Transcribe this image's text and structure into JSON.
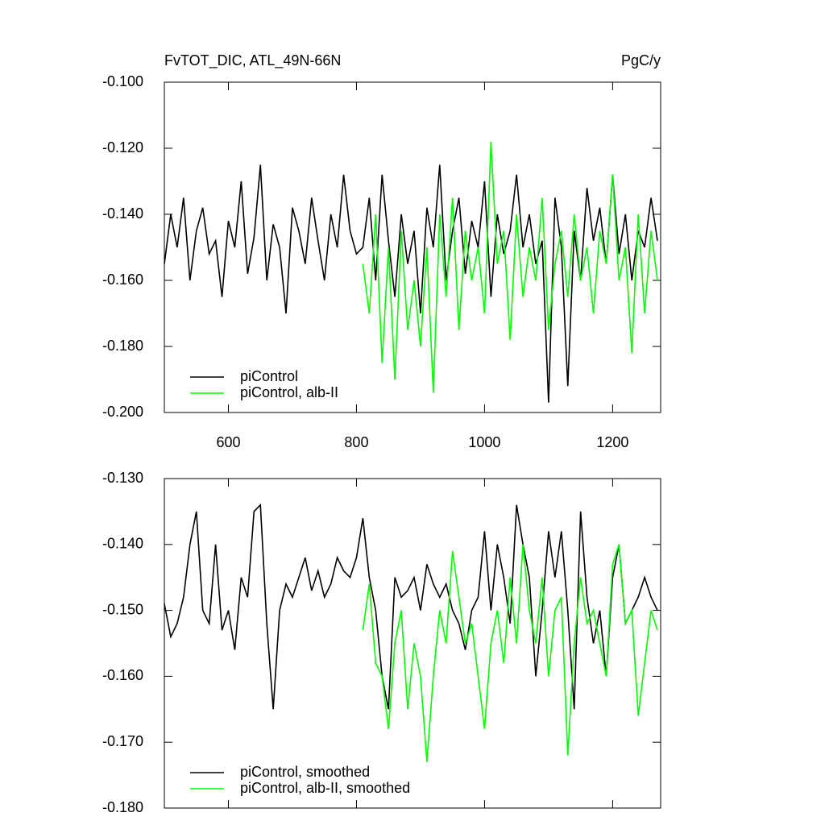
{
  "chart_data": [
    {
      "type": "line",
      "title": "FvTOT_DIC, ATL_49N-66N",
      "units": "PgC/y",
      "x": [
        500,
        510,
        520,
        530,
        540,
        550,
        560,
        570,
        580,
        590,
        600,
        610,
        620,
        630,
        640,
        650,
        660,
        670,
        680,
        690,
        700,
        710,
        720,
        730,
        740,
        750,
        760,
        770,
        780,
        790,
        800,
        810,
        820,
        830,
        840,
        850,
        860,
        870,
        880,
        890,
        900,
        910,
        920,
        930,
        940,
        950,
        960,
        970,
        980,
        990,
        1000,
        1010,
        1020,
        1030,
        1040,
        1050,
        1060,
        1070,
        1080,
        1090,
        1100,
        1110,
        1120,
        1130,
        1140,
        1150,
        1160,
        1170,
        1180,
        1190,
        1200,
        1210,
        1220,
        1230,
        1240,
        1250,
        1260,
        1270
      ],
      "xlim": [
        500,
        1275
      ],
      "xticks": [
        600,
        800,
        1000,
        1200
      ],
      "ylim": [
        -0.2,
        -0.1
      ],
      "yticks": [
        {
          "value": -0.2,
          "label": "-0.200"
        },
        {
          "value": -0.18,
          "label": "-0.180"
        },
        {
          "value": -0.16,
          "label": "-0.160"
        },
        {
          "value": -0.14,
          "label": "-0.140"
        },
        {
          "value": -0.12,
          "label": "-0.120"
        },
        {
          "value": -0.1,
          "label": "-0.100"
        }
      ],
      "legend": "lower left",
      "series": [
        {
          "name": "piControl",
          "color": "#000000",
          "values": [
            -0.155,
            -0.14,
            -0.15,
            -0.135,
            -0.16,
            -0.145,
            -0.138,
            -0.152,
            -0.148,
            -0.165,
            -0.142,
            -0.15,
            -0.13,
            -0.158,
            -0.147,
            -0.125,
            -0.16,
            -0.143,
            -0.15,
            -0.17,
            -0.138,
            -0.145,
            -0.155,
            -0.135,
            -0.148,
            -0.16,
            -0.14,
            -0.15,
            -0.128,
            -0.145,
            -0.152,
            -0.15,
            -0.135,
            -0.16,
            -0.128,
            -0.148,
            -0.165,
            -0.14,
            -0.155,
            -0.145,
            -0.17,
            -0.138,
            -0.15,
            -0.125,
            -0.16,
            -0.145,
            -0.135,
            -0.158,
            -0.142,
            -0.15,
            -0.13,
            -0.165,
            -0.14,
            -0.152,
            -0.145,
            -0.128,
            -0.15,
            -0.14,
            -0.155,
            -0.148,
            -0.197,
            -0.135,
            -0.15,
            -0.192,
            -0.145,
            -0.16,
            -0.132,
            -0.148,
            -0.138,
            -0.155,
            -0.128,
            -0.152,
            -0.14,
            -0.16,
            -0.145,
            -0.15,
            -0.135,
            -0.148
          ]
        },
        {
          "name": "piControl, alb-II",
          "color": "#00ff00",
          "values": [
            null,
            null,
            null,
            null,
            null,
            null,
            null,
            null,
            null,
            null,
            null,
            null,
            null,
            null,
            null,
            null,
            null,
            null,
            null,
            null,
            null,
            null,
            null,
            null,
            null,
            null,
            null,
            null,
            null,
            null,
            null,
            -0.155,
            -0.17,
            -0.14,
            -0.185,
            -0.15,
            -0.19,
            -0.145,
            -0.175,
            -0.16,
            -0.18,
            -0.15,
            -0.194,
            -0.14,
            -0.165,
            -0.135,
            -0.175,
            -0.145,
            -0.16,
            -0.15,
            -0.17,
            -0.118,
            -0.155,
            -0.145,
            -0.178,
            -0.14,
            -0.165,
            -0.15,
            -0.16,
            -0.135,
            -0.175,
            -0.155,
            -0.145,
            -0.165,
            -0.14,
            -0.16,
            -0.15,
            -0.17,
            -0.145,
            -0.155,
            -0.128,
            -0.16,
            -0.15,
            -0.182,
            -0.14,
            -0.17,
            -0.145,
            -0.16
          ]
        }
      ]
    },
    {
      "type": "line",
      "x": [
        500,
        510,
        520,
        530,
        540,
        550,
        560,
        570,
        580,
        590,
        600,
        610,
        620,
        630,
        640,
        650,
        660,
        670,
        680,
        690,
        700,
        710,
        720,
        730,
        740,
        750,
        760,
        770,
        780,
        790,
        800,
        810,
        820,
        830,
        840,
        850,
        860,
        870,
        880,
        890,
        900,
        910,
        920,
        930,
        940,
        950,
        960,
        970,
        980,
        990,
        1000,
        1010,
        1020,
        1030,
        1040,
        1050,
        1060,
        1070,
        1080,
        1090,
        1100,
        1110,
        1120,
        1130,
        1140,
        1150,
        1160,
        1170,
        1180,
        1190,
        1200,
        1210,
        1220,
        1230,
        1240,
        1250,
        1260,
        1270
      ],
      "xlim": [
        500,
        1275
      ],
      "ylim": [
        -0.18,
        -0.13
      ],
      "yticks": [
        {
          "value": -0.18,
          "label": "-0.180"
        },
        {
          "value": -0.17,
          "label": "-0.170"
        },
        {
          "value": -0.16,
          "label": "-0.160"
        },
        {
          "value": -0.15,
          "label": "-0.150"
        },
        {
          "value": -0.14,
          "label": "-0.140"
        },
        {
          "value": -0.13,
          "label": "-0.130"
        }
      ],
      "legend": "lower left",
      "series": [
        {
          "name": "piControl, smoothed",
          "color": "#000000",
          "values": [
            -0.149,
            -0.154,
            -0.152,
            -0.148,
            -0.14,
            -0.135,
            -0.15,
            -0.152,
            -0.14,
            -0.153,
            -0.15,
            -0.156,
            -0.145,
            -0.148,
            -0.135,
            -0.134,
            -0.152,
            -0.165,
            -0.15,
            -0.146,
            -0.148,
            -0.145,
            -0.142,
            -0.147,
            -0.144,
            -0.148,
            -0.146,
            -0.142,
            -0.144,
            -0.145,
            -0.142,
            -0.136,
            -0.145,
            -0.15,
            -0.16,
            -0.165,
            -0.145,
            -0.148,
            -0.147,
            -0.145,
            -0.15,
            -0.143,
            -0.146,
            -0.148,
            -0.146,
            -0.15,
            -0.152,
            -0.156,
            -0.15,
            -0.148,
            -0.138,
            -0.15,
            -0.14,
            -0.145,
            -0.152,
            -0.134,
            -0.14,
            -0.145,
            -0.16,
            -0.15,
            -0.138,
            -0.145,
            -0.138,
            -0.15,
            -0.165,
            -0.135,
            -0.148,
            -0.155,
            -0.15,
            -0.16,
            -0.145,
            -0.14,
            -0.152,
            -0.15,
            -0.148,
            -0.145,
            -0.148,
            -0.15
          ]
        },
        {
          "name": "piControl, alb-II, smoothed",
          "color": "#00ff00",
          "values": [
            null,
            null,
            null,
            null,
            null,
            null,
            null,
            null,
            null,
            null,
            null,
            null,
            null,
            null,
            null,
            null,
            null,
            null,
            null,
            null,
            null,
            null,
            null,
            null,
            null,
            null,
            null,
            null,
            null,
            null,
            null,
            -0.153,
            -0.146,
            -0.158,
            -0.16,
            -0.168,
            -0.155,
            -0.15,
            -0.165,
            -0.155,
            -0.16,
            -0.173,
            -0.16,
            -0.15,
            -0.155,
            -0.141,
            -0.148,
            -0.155,
            -0.152,
            -0.16,
            -0.168,
            -0.155,
            -0.15,
            -0.158,
            -0.145,
            -0.155,
            -0.14,
            -0.15,
            -0.155,
            -0.145,
            -0.16,
            -0.15,
            -0.148,
            -0.172,
            -0.155,
            -0.145,
            -0.152,
            -0.15,
            -0.155,
            -0.16,
            -0.143,
            -0.14,
            -0.152,
            -0.15,
            -0.166,
            -0.158,
            -0.15,
            -0.153
          ]
        }
      ]
    }
  ]
}
